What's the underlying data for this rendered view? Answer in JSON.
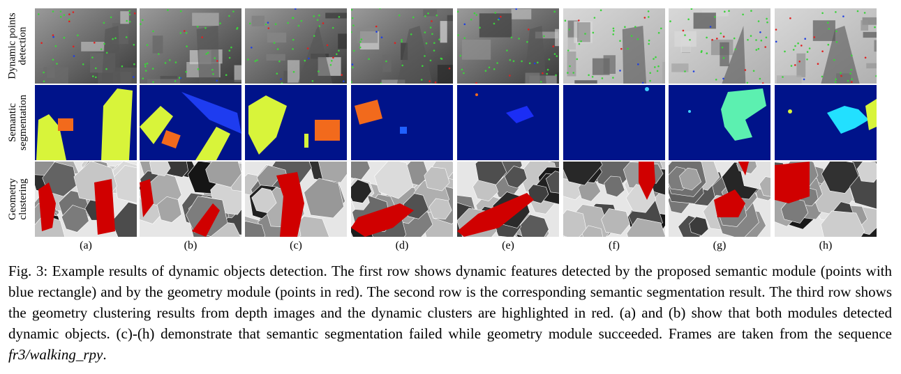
{
  "figure": {
    "row_labels": [
      [
        "Dynamic points",
        "detection"
      ],
      [
        "Semantic",
        "segmentation"
      ],
      [
        "Geometry",
        "clustering"
      ]
    ],
    "columns": [
      {
        "label": "(a)"
      },
      {
        "label": "(b)"
      },
      {
        "label": "(c)"
      },
      {
        "label": "(d)"
      },
      {
        "label": "(e)"
      },
      {
        "label": "(f)"
      },
      {
        "label": "(g)"
      },
      {
        "label": "(h)"
      }
    ],
    "colors": {
      "segmentation_background": "#00138a",
      "dynamic_cluster": "#d00000",
      "person_yellow": "#d8f43a",
      "monitor_orange": "#f26a1c"
    }
  },
  "caption": {
    "prefix": "Fig. 3: Example results of dynamic objects detection. The first row shows dynamic features detected by the proposed semantic module (points with blue rectangle) and by the geometry module (points in red). The second row is the corresponding semantic segmentation result. The third row shows the geometry clustering results from depth images and the dynamic clusters are highlighted in red. (a) and (b) show that both modules detected dynamic objects. (c)-(h) demonstrate that semantic segmentation failed while geometry module succeeded. Frames are taken from the sequence ",
    "sequence": "fr3/walking_rpy",
    "suffix": "."
  }
}
